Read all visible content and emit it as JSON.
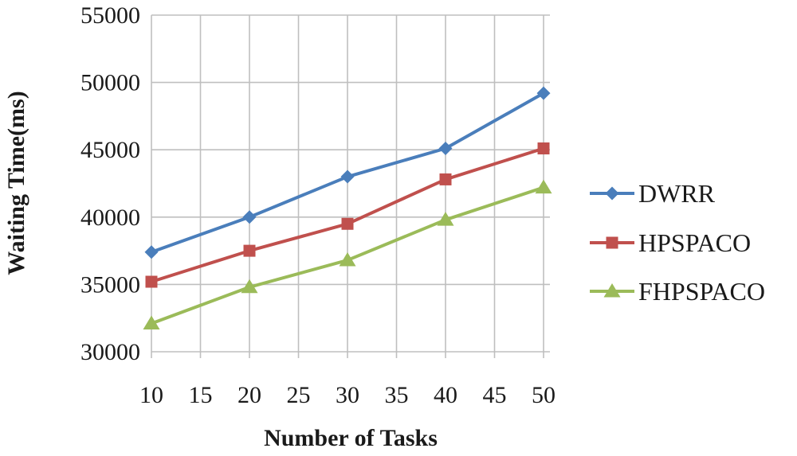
{
  "chart_data": {
    "type": "line",
    "xlabel": "Number of Tasks",
    "ylabel": "Waiting Time(ms)",
    "x": [
      10,
      20,
      30,
      40,
      50
    ],
    "xlim": [
      10,
      50
    ],
    "ylim": [
      30000,
      55000
    ],
    "x_ticks": [
      "10",
      "15",
      "20",
      "25",
      "30",
      "35",
      "40",
      "45",
      "50"
    ],
    "y_ticks": [
      "30000",
      "35000",
      "40000",
      "45000",
      "50000",
      "55000"
    ],
    "grid": "horizontal and vertical",
    "legend_position": "right",
    "series": [
      {
        "name": "DWRR",
        "values": [
          37400,
          40000,
          43000,
          45100,
          49200
        ],
        "color": "#4a7ebb",
        "marker": "diamond"
      },
      {
        "name": "HPSPACO",
        "values": [
          35200,
          37500,
          39500,
          42800,
          45100
        ],
        "color": "#c0504d",
        "marker": "square"
      },
      {
        "name": "FHPSPACO",
        "values": [
          32100,
          34800,
          36800,
          39800,
          42200
        ],
        "color": "#9bbb59",
        "marker": "triangle"
      }
    ]
  }
}
